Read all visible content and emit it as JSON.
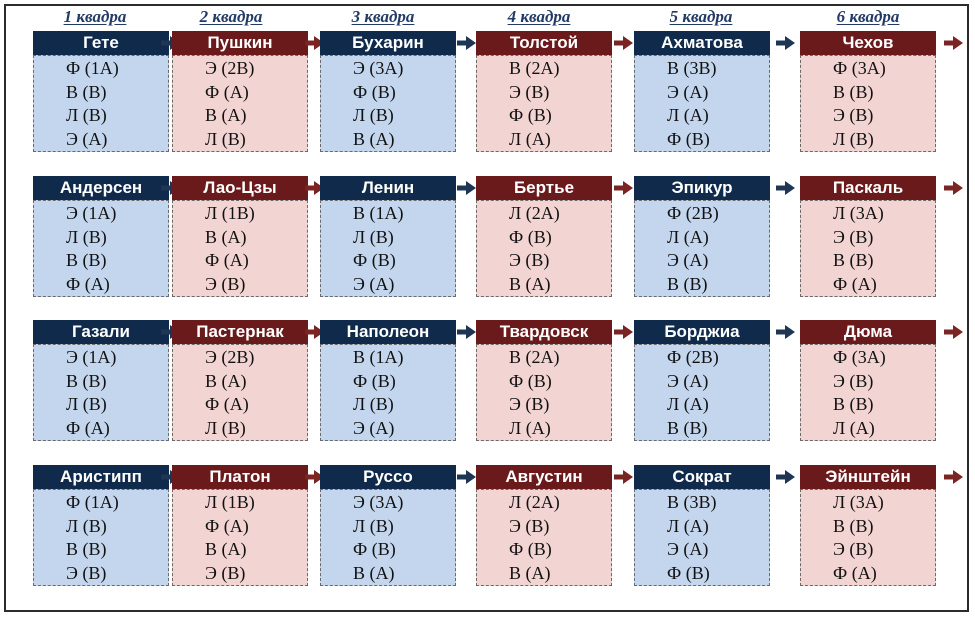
{
  "quadras": [
    "1 квадра",
    "2 квадра",
    "3 квадра",
    "4 квадра",
    "5 квадра",
    "6 квадра"
  ],
  "colors": {
    "blue_header": "#0f2a4b",
    "red_header": "#6b1a1c",
    "blue_body": "#c4d6ee",
    "red_body": "#f2d4d2",
    "arrow_blue": "#1f3554",
    "arrow_red": "#7a2424"
  },
  "rows": [
    [
      {
        "name": "Гете",
        "tone": "blue",
        "functions": [
          "Ф (1А)",
          "В (В)",
          "Л (В)",
          "Э (А)"
        ]
      },
      {
        "name": "Пушкин",
        "tone": "red",
        "functions": [
          "Э (2В)",
          "Ф (А)",
          "В (А)",
          "Л (В)"
        ]
      },
      {
        "name": "Бухарин",
        "tone": "blue",
        "functions": [
          "Э (3А)",
          "Ф (В)",
          "Л (В)",
          "В (А)"
        ]
      },
      {
        "name": "Толстой",
        "tone": "red",
        "functions": [
          "В (2А)",
          "Э (В)",
          "Ф (В)",
          "Л (А)"
        ]
      },
      {
        "name": "Ахматова",
        "tone": "blue",
        "functions": [
          "В (3В)",
          "Э (А)",
          "Л (А)",
          "Ф (В)"
        ]
      },
      {
        "name": "Чехов",
        "tone": "red",
        "functions": [
          "Ф (3А)",
          "В (В)",
          "Э (В)",
          "Л (В)"
        ]
      }
    ],
    [
      {
        "name": "Андерсен",
        "tone": "blue",
        "functions": [
          "Э (1А)",
          "Л (В)",
          "В (В)",
          "Ф (А)"
        ]
      },
      {
        "name": "Лао-Цзы",
        "tone": "red",
        "functions": [
          "Л (1В)",
          "В (А)",
          "Ф (А)",
          "Э (В)"
        ]
      },
      {
        "name": "Ленин",
        "tone": "blue",
        "functions": [
          "В (1А)",
          "Л (В)",
          "Ф (В)",
          "Э (А)"
        ]
      },
      {
        "name": "Бертье",
        "tone": "red",
        "functions": [
          "Л (2А)",
          "Ф (В)",
          "Э (В)",
          "В (А)"
        ]
      },
      {
        "name": "Эпикур",
        "tone": "blue",
        "functions": [
          "Ф (2В)",
          "Л (А)",
          "Э (А)",
          "В (В)"
        ]
      },
      {
        "name": "Паскаль",
        "tone": "red",
        "functions": [
          "Л (3А)",
          "Э (В)",
          "В (В)",
          "Ф (А)"
        ]
      }
    ],
    [
      {
        "name": "Газали",
        "tone": "blue",
        "functions": [
          "Э (1А)",
          "В (В)",
          "Л (В)",
          "Ф (А)"
        ]
      },
      {
        "name": "Пастернак",
        "tone": "red",
        "functions": [
          "Э (2В)",
          "В (А)",
          "Ф (А)",
          "Л (В)"
        ]
      },
      {
        "name": "Наполеон",
        "tone": "blue",
        "functions": [
          "В (1А)",
          "Ф (В)",
          "Л (В)",
          "Э (А)"
        ]
      },
      {
        "name": "Твардовск",
        "tone": "red",
        "functions": [
          "В (2А)",
          "Ф (В)",
          "Э (В)",
          "Л (А)"
        ]
      },
      {
        "name": "Борджиа",
        "tone": "blue",
        "functions": [
          "Ф (2В)",
          "Э (А)",
          "Л (А)",
          "В (В)"
        ]
      },
      {
        "name": "Дюма",
        "tone": "red",
        "functions": [
          "Ф (3А)",
          "Э (В)",
          "В (В)",
          "Л (А)"
        ]
      }
    ],
    [
      {
        "name": "Аристипп",
        "tone": "blue",
        "functions": [
          "Ф (1А)",
          "Л (В)",
          "В (В)",
          "Э (В)"
        ]
      },
      {
        "name": "Платон",
        "tone": "red",
        "functions": [
          "Л (1В)",
          "Ф (А)",
          "В (А)",
          "Э (В)"
        ]
      },
      {
        "name": "Руссо",
        "tone": "blue",
        "functions": [
          "Э (3А)",
          "Л (В)",
          "Ф (В)",
          "В (А)"
        ]
      },
      {
        "name": "Августин",
        "tone": "red",
        "functions": [
          "Л (2А)",
          "Э (В)",
          "Ф (В)",
          "В (А)"
        ]
      },
      {
        "name": "Сократ",
        "tone": "blue",
        "functions": [
          "В (3В)",
          "Л (А)",
          "Э (А)",
          "Ф (В)"
        ]
      },
      {
        "name": "Эйнштейн",
        "tone": "red",
        "functions": [
          "Л (3А)",
          "В (В)",
          "Э (В)",
          "Ф (А)"
        ]
      }
    ]
  ]
}
